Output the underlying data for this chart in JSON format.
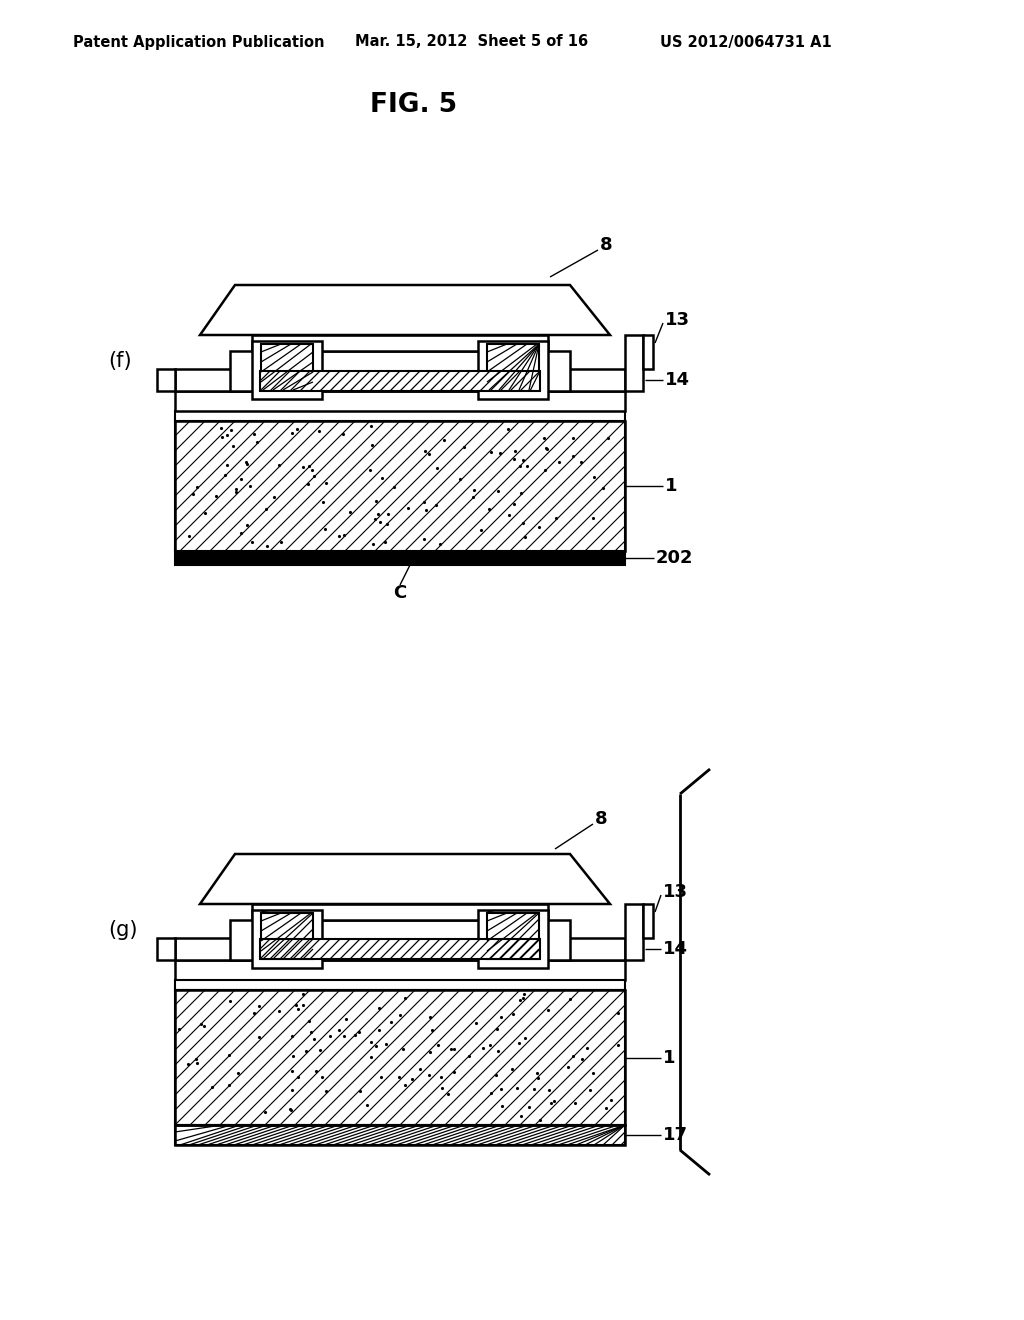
{
  "title": "FIG. 5",
  "header_left": "Patent Application Publication",
  "header_mid": "Mar. 15, 2012  Sheet 5 of 16",
  "header_right": "US 2012/0064731 A1",
  "bg_color": "#ffffff",
  "line_color": "#000000",
  "label_f": "(f)",
  "label_g": "(g)"
}
